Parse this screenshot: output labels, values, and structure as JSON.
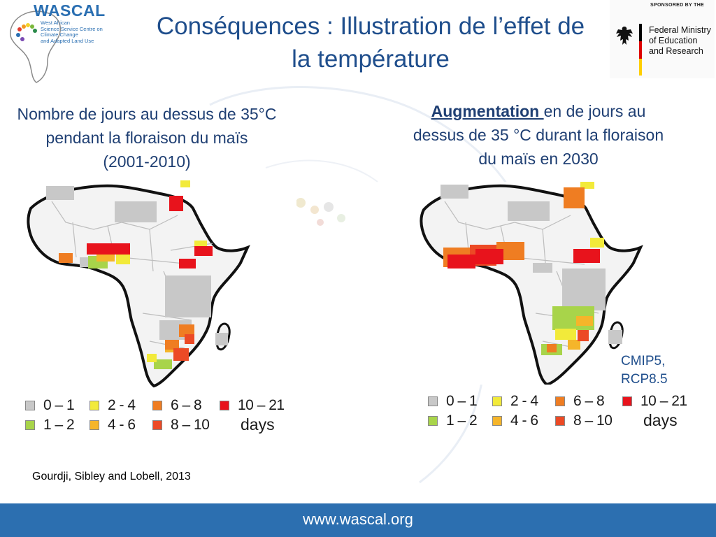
{
  "header": {
    "title_line1": "Conséquences : Illustration de l’effet de",
    "title_line2": "la température"
  },
  "logos": {
    "wascal_name": "WASCAL",
    "wascal_sub": [
      "West African",
      "Science Service Centre on",
      "Climate Change",
      "and Adapted Land Use"
    ],
    "sponsor_label": "SPONSORED BY THE",
    "ministry": [
      "Federal Ministry",
      "of Education",
      "and Research"
    ]
  },
  "left": {
    "subtitle": [
      "Nombre de jours  au dessus de 35°C",
      "pendant la floraison du  maïs",
      "(2001-2010)"
    ]
  },
  "right": {
    "subtitle_emph": "Augmentation ",
    "subtitle": [
      "en de jours au",
      "dessus de 35 °C durant la floraison",
      "du maïs  en 2030"
    ],
    "note": [
      "CMIP5,",
      "RCP8.5"
    ]
  },
  "legend": {
    "items": [
      {
        "label": "0 – 1",
        "color": "#c8c8c8"
      },
      {
        "label": "1 – 2",
        "color": "#a8d44a"
      },
      {
        "label": "2 - 4",
        "color": "#f2ea3a"
      },
      {
        "label": "4 - 6",
        "color": "#f5b52a"
      },
      {
        "label": "6 – 8",
        "color": "#ef7d22"
      },
      {
        "label": "8 – 10",
        "color": "#ec4a25"
      },
      {
        "label": "10 – 21",
        "color": "#e8131c"
      }
    ],
    "unit": "days"
  },
  "source": "Gourdji, Sibley and Lobell, 2013",
  "footer": {
    "url": "www.wascal.org",
    "color": "#2c6fb0"
  },
  "colors": {
    "title": "#1f4e8c",
    "subtitle": "#1f3f73"
  }
}
